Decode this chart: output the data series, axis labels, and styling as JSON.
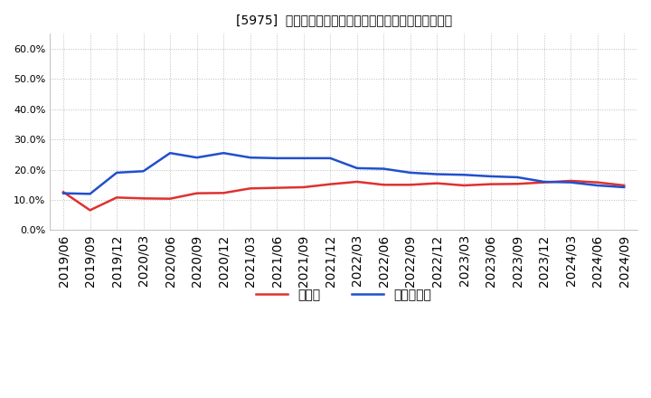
{
  "title": "[5975]  現預金、有利子負債の総資産に対する比率の推移",
  "x_labels": [
    "2019/06",
    "2019/09",
    "2019/12",
    "2020/03",
    "2020/06",
    "2020/09",
    "2020/12",
    "2021/03",
    "2021/06",
    "2021/09",
    "2021/12",
    "2022/03",
    "2022/06",
    "2022/09",
    "2022/12",
    "2023/03",
    "2023/06",
    "2023/09",
    "2023/12",
    "2024/03",
    "2024/06",
    "2024/09"
  ],
  "cash": [
    0.126,
    0.066,
    0.108,
    0.105,
    0.104,
    0.122,
    0.123,
    0.138,
    0.14,
    0.142,
    0.152,
    0.16,
    0.15,
    0.15,
    0.155,
    0.148,
    0.152,
    0.153,
    0.158,
    0.163,
    0.158,
    0.148
  ],
  "debt": [
    0.122,
    0.12,
    0.19,
    0.195,
    0.255,
    0.24,
    0.255,
    0.24,
    0.238,
    0.238,
    0.238,
    0.205,
    0.203,
    0.19,
    0.185,
    0.183,
    0.178,
    0.175,
    0.16,
    0.158,
    0.148,
    0.142
  ],
  "cash_color": "#e03030",
  "debt_color": "#2050cc",
  "background_color": "#ffffff",
  "plot_bg_color": "#ffffff",
  "grid_color": "#aaaaaa",
  "ylim": [
    0.0,
    0.65
  ],
  "yticks": [
    0.0,
    0.1,
    0.2,
    0.3,
    0.4,
    0.5,
    0.6
  ],
  "legend_cash": "現預金",
  "legend_debt": "有利子負債",
  "title_fontsize": 12
}
